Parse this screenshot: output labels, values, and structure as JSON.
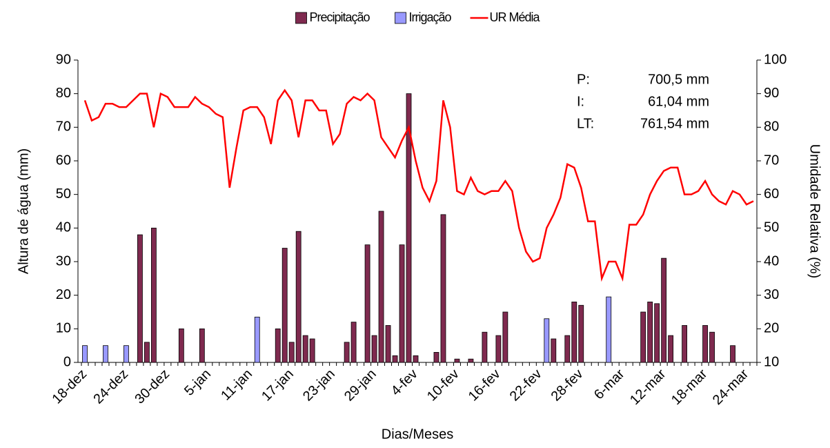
{
  "chart_data": {
    "type": "bar-line",
    "x_label": "Dias/Meses",
    "y_label": "Altura de água (mm)",
    "y2_label": "Umidade Relativa (%)",
    "categories": [
      "18-dez",
      null,
      null,
      null,
      null,
      null,
      "24-dez",
      null,
      null,
      null,
      null,
      null,
      "30-dez",
      null,
      null,
      null,
      null,
      null,
      "5-jan",
      null,
      null,
      null,
      null,
      null,
      "11-jan",
      null,
      null,
      null,
      null,
      null,
      "17-jan",
      null,
      null,
      null,
      null,
      null,
      "23-jan",
      null,
      null,
      null,
      null,
      null,
      "29-jan",
      null,
      null,
      null,
      null,
      null,
      "4-fev",
      null,
      null,
      null,
      null,
      null,
      "10-fev",
      null,
      null,
      null,
      null,
      null,
      "16-fev",
      null,
      null,
      null,
      null,
      null,
      "22-fev",
      null,
      null,
      null,
      null,
      null,
      "28-fev",
      null,
      null,
      null,
      null,
      null,
      "6-mar",
      null,
      null,
      null,
      null,
      null,
      "12-mar",
      null,
      null,
      null,
      null,
      null,
      "18-mar",
      null,
      null,
      null,
      null,
      null,
      "24-mar",
      null
    ],
    "series": [
      {
        "name": "Precipitação",
        "type": "bar",
        "color": "#7f2a4f",
        "values": [
          null,
          null,
          null,
          null,
          null,
          null,
          null,
          null,
          38,
          6,
          40,
          null,
          null,
          null,
          10,
          null,
          null,
          10,
          null,
          null,
          null,
          null,
          null,
          null,
          null,
          null,
          null,
          null,
          10,
          34,
          6,
          39,
          8,
          7,
          null,
          null,
          null,
          null,
          6,
          12,
          null,
          35,
          8,
          45,
          11,
          2,
          35,
          80,
          2,
          null,
          null,
          3,
          44,
          null,
          1,
          null,
          1,
          null,
          9,
          null,
          8,
          15,
          null,
          null,
          null,
          null,
          null,
          null,
          7,
          null,
          8,
          18,
          17,
          null,
          null,
          null,
          null,
          null,
          null,
          null,
          null,
          15,
          18,
          17.5,
          31,
          8,
          null,
          11,
          null,
          null,
          11,
          9,
          null,
          null,
          5,
          null,
          null,
          null
        ]
      },
      {
        "name": "Irrigação",
        "type": "bar",
        "color": "#9999ff",
        "values": [
          5,
          null,
          null,
          5,
          null,
          null,
          5,
          null,
          null,
          null,
          null,
          null,
          null,
          null,
          null,
          null,
          null,
          null,
          null,
          null,
          null,
          null,
          null,
          null,
          null,
          13.5,
          null,
          null,
          null,
          null,
          null,
          null,
          null,
          null,
          null,
          null,
          null,
          null,
          null,
          null,
          null,
          null,
          null,
          null,
          null,
          null,
          null,
          null,
          null,
          null,
          null,
          null,
          null,
          null,
          null,
          null,
          null,
          null,
          null,
          null,
          null,
          null,
          null,
          null,
          null,
          null,
          null,
          13,
          null,
          null,
          null,
          null,
          null,
          null,
          null,
          null,
          19.5,
          null,
          null,
          null,
          null,
          null,
          null,
          null,
          null,
          null,
          null,
          null,
          null,
          null,
          null,
          null,
          null,
          null,
          null,
          null,
          null,
          null
        ]
      },
      {
        "name": "UR Média",
        "type": "line",
        "axis": "y2",
        "color": "#ff0000",
        "values": [
          88,
          82,
          83,
          87,
          87,
          86,
          86,
          88,
          90,
          90,
          80,
          90,
          89,
          86,
          86,
          86,
          89,
          87,
          86,
          84,
          83,
          62,
          74,
          85,
          86,
          86,
          83,
          75,
          88,
          91,
          88,
          77,
          88,
          88,
          85,
          85,
          75,
          78,
          87,
          89,
          88,
          90,
          88,
          77,
          74,
          71,
          76,
          80,
          70,
          62,
          58,
          64,
          88,
          80,
          61,
          60,
          65,
          61,
          60,
          61,
          61,
          64,
          61,
          50,
          43,
          40,
          41,
          50,
          54,
          59,
          69,
          68,
          62,
          52,
          52,
          35,
          40,
          40,
          35,
          51,
          51,
          54,
          60,
          64,
          67,
          68,
          68,
          60,
          60,
          61,
          64,
          60,
          58,
          57,
          61,
          60,
          57,
          58
        ]
      }
    ],
    "ylim": [
      0,
      90
    ],
    "yticks": [
      0,
      10,
      20,
      30,
      40,
      50,
      60,
      70,
      80,
      90
    ],
    "y2lim": [
      10,
      100
    ],
    "y2ticks": [
      10,
      20,
      30,
      40,
      50,
      60,
      70,
      80,
      90,
      100
    ],
    "legend": "top",
    "annotations": [
      {
        "label": "P:",
        "text": "700,5 mm"
      },
      {
        "label": "I:",
        "text": "61,04 mm"
      },
      {
        "label": "LT:",
        "text": "761,54 mm"
      }
    ]
  }
}
